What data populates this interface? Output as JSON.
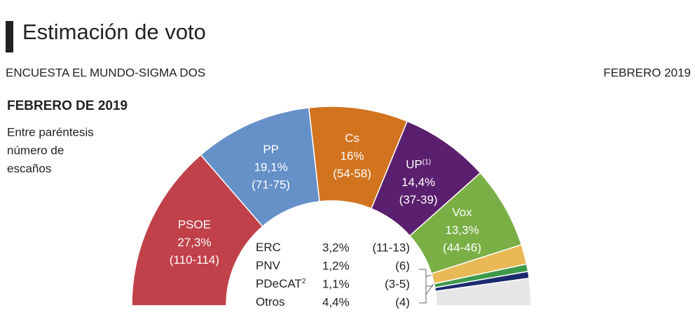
{
  "chart_data": {
    "type": "half-donut",
    "title": "Estimación de voto",
    "subtitle": "ENCUESTA EL MUNDO-SIGMA DOS",
    "date": "FEBRERO 2019",
    "heading": "FEBRERO DE 2019",
    "note_lines": [
      "Entre paréntesis",
      "número de",
      "escaños"
    ],
    "categories": [
      "PSOE",
      "PP",
      "Cs",
      "UP",
      "Vox",
      "ERC",
      "PNV",
      "PDeCAT",
      "Otros"
    ],
    "category_notes": [
      null,
      null,
      null,
      "(1)",
      null,
      null,
      null,
      "2",
      null
    ],
    "values": [
      27.3,
      19.1,
      16,
      14.4,
      13.3,
      3.2,
      1.2,
      1.1,
      4.4
    ],
    "value_labels": [
      "27,3%",
      "19,1%",
      "16%",
      "14,4%",
      "13,3%",
      "3,2%",
      "1,2%",
      "1,1%",
      "4,4%"
    ],
    "seats": [
      "(110-114)",
      "(71-75)",
      "(54-58)",
      "(37-39)",
      "(44-46)",
      "(11-13)",
      "(6)",
      "(3-5)",
      "(4)"
    ],
    "colors": [
      "#c0414a",
      "#6590c8",
      "#d2731f",
      "#5a1f6e",
      "#7aaf45",
      "#e8b954",
      "#3d9a4a",
      "#1c2a6e",
      "#e6e6e6"
    ]
  }
}
